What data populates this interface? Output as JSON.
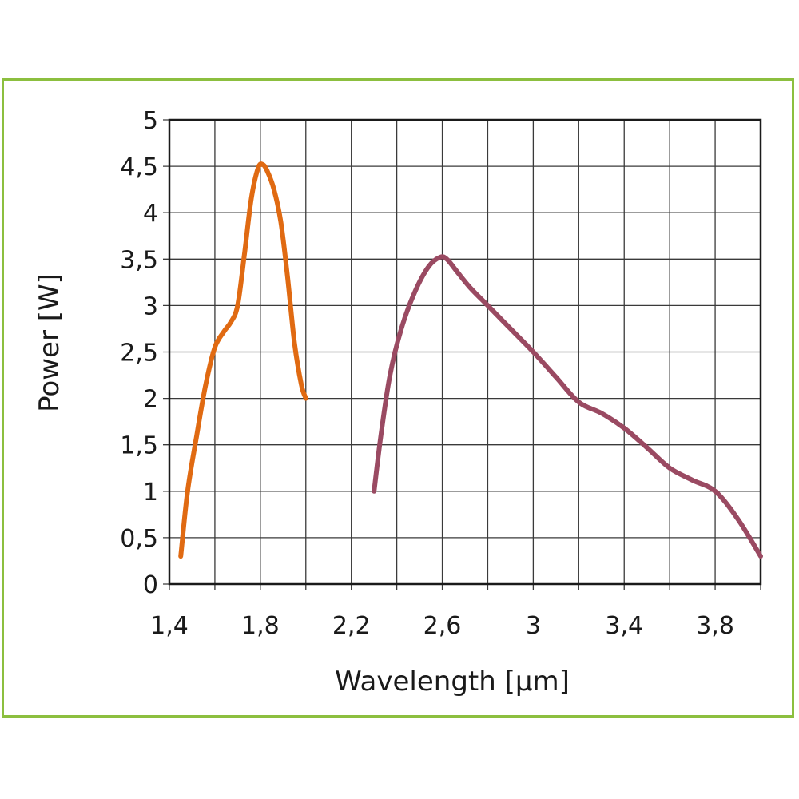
{
  "chart_data": {
    "type": "line",
    "title": "",
    "xlabel": "Wavelength [µm]",
    "ylabel": "Power [W]",
    "xlim": [
      1.4,
      4.0
    ],
    "ylim": [
      0,
      5
    ],
    "grid": true,
    "xticks": [
      1.4,
      1.6,
      1.8,
      2.0,
      2.2,
      2.4,
      2.6,
      2.8,
      3.0,
      3.2,
      3.4,
      3.6,
      3.8,
      4.0
    ],
    "xtick_labels": [
      "1,4",
      "",
      "1,8",
      "",
      "2,2",
      "",
      "2,6",
      "",
      "3",
      "",
      "3,4",
      "",
      "3,8",
      ""
    ],
    "yticks": [
      0,
      0.5,
      1,
      1.5,
      2,
      2.5,
      3,
      3.5,
      4,
      4.5,
      5
    ],
    "ytick_labels": [
      "0",
      "0,5",
      "1",
      "1,5",
      "2",
      "2,5",
      "3",
      "3,5",
      "4",
      "4,5",
      "5"
    ],
    "series": [
      {
        "color": "#e06a12",
        "x": [
          1.45,
          1.48,
          1.52,
          1.56,
          1.6,
          1.64,
          1.67,
          1.7,
          1.73,
          1.76,
          1.79,
          1.81,
          1.83,
          1.86,
          1.89,
          1.92,
          1.95,
          1.98,
          2.0
        ],
        "y": [
          0.3,
          1.0,
          1.6,
          2.15,
          2.55,
          2.72,
          2.82,
          3.0,
          3.55,
          4.15,
          4.48,
          4.52,
          4.45,
          4.25,
          3.9,
          3.3,
          2.6,
          2.15,
          2.0
        ]
      },
      {
        "color": "#9a4a62",
        "x": [
          2.3,
          2.33,
          2.37,
          2.42,
          2.48,
          2.54,
          2.59,
          2.62,
          2.66,
          2.72,
          2.8,
          2.9,
          3.0,
          3.1,
          3.2,
          3.3,
          3.4,
          3.5,
          3.6,
          3.7,
          3.8,
          3.9,
          4.0
        ],
        "y": [
          1.0,
          1.6,
          2.25,
          2.75,
          3.15,
          3.42,
          3.52,
          3.5,
          3.38,
          3.2,
          3.0,
          2.75,
          2.5,
          2.23,
          1.96,
          1.84,
          1.68,
          1.47,
          1.25,
          1.12,
          1.0,
          0.7,
          0.3
        ]
      }
    ]
  }
}
